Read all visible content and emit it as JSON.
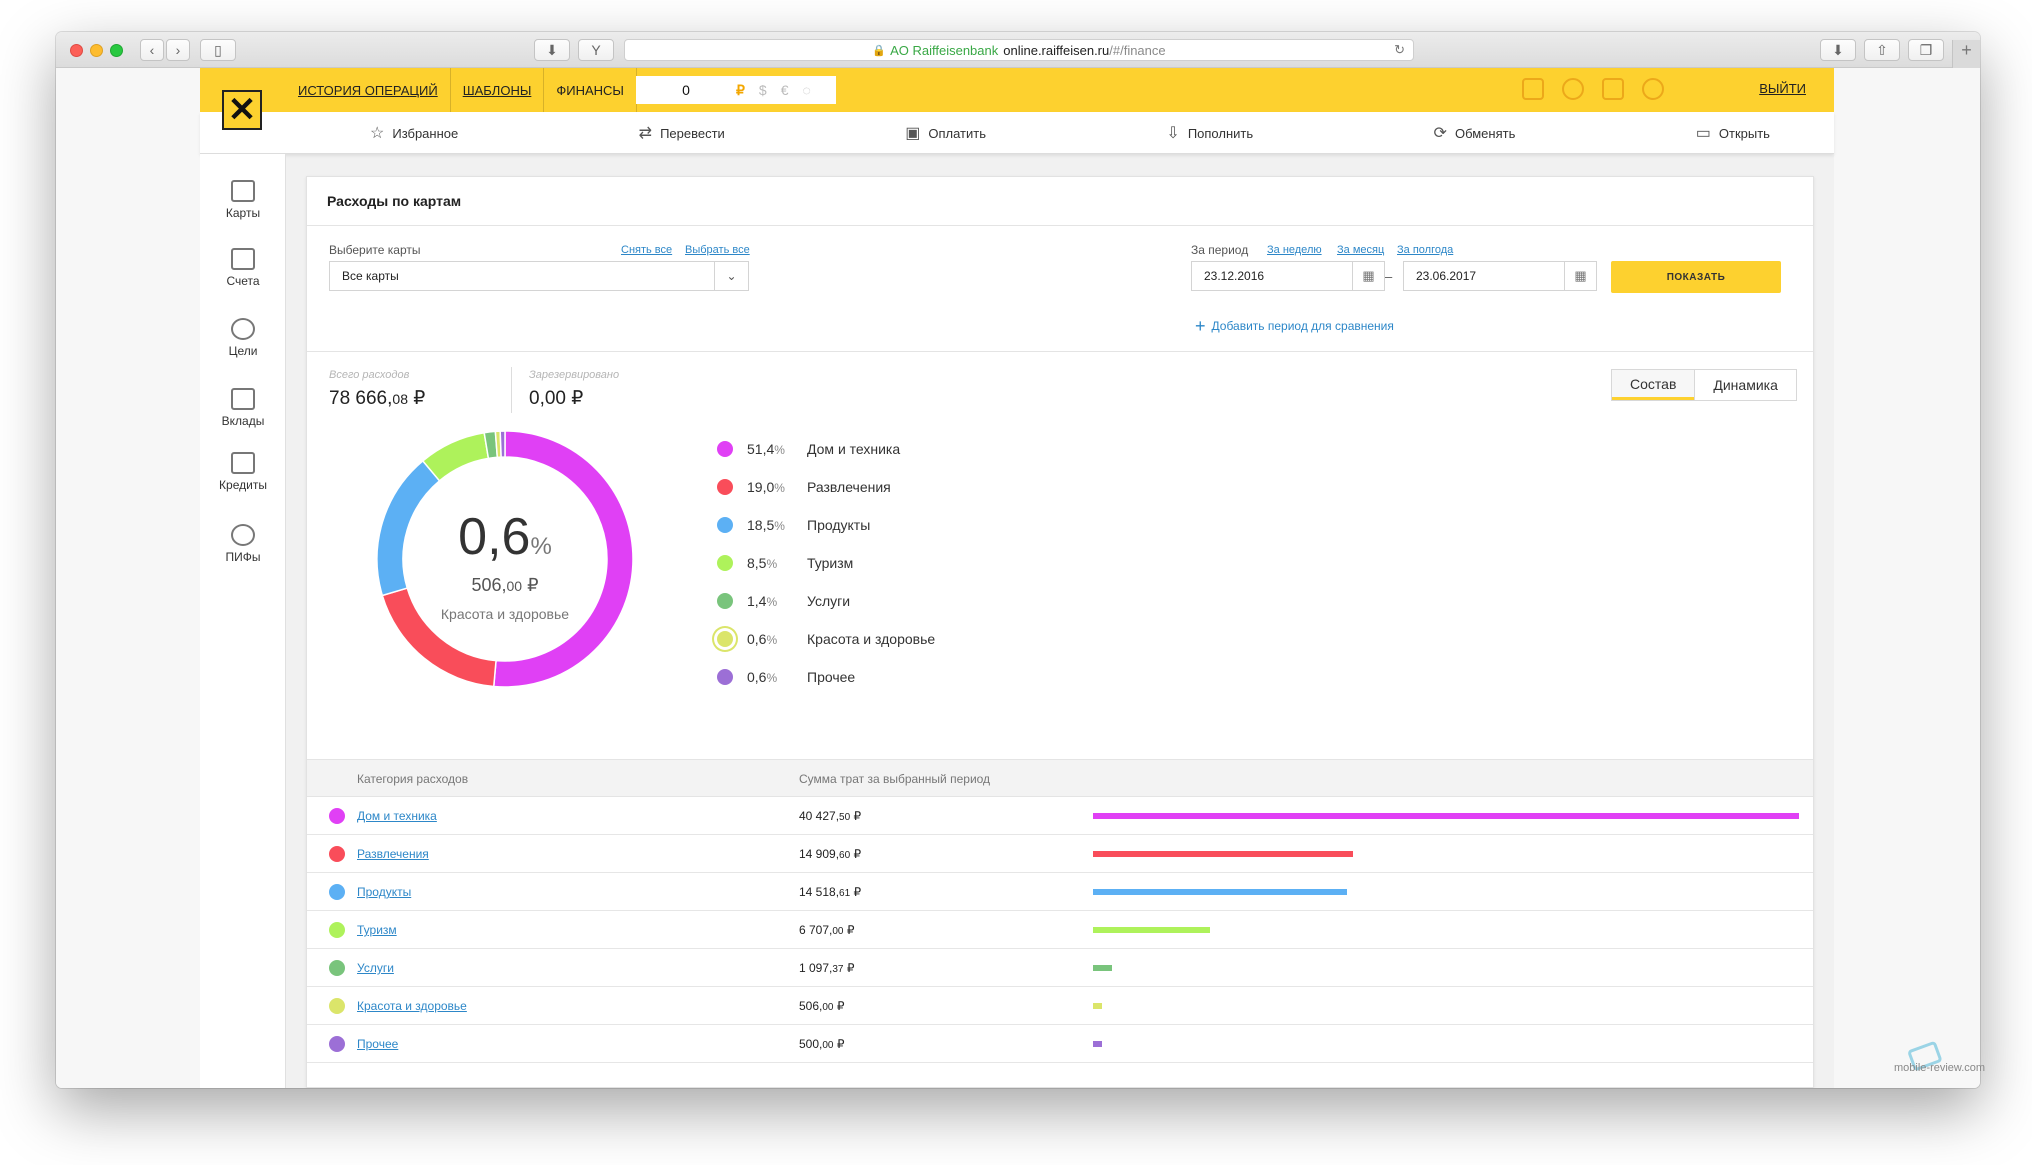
{
  "browser": {
    "url_org": "AO Raiffeisenbank",
    "url_host": "online.raiffeisen.ru",
    "url_path": "/#/finance"
  },
  "header": {
    "nav": [
      {
        "label": "ИСТОРИЯ ОПЕРАЦИЙ"
      },
      {
        "label": "ШАБЛОНЫ"
      },
      {
        "label": "ФИНАНСЫ"
      }
    ],
    "balance_value": "0",
    "currencies": [
      "₽",
      "$",
      "€"
    ],
    "logout_label": "ВЫЙТИ"
  },
  "actions": [
    {
      "label": "Избранное",
      "icon": "star-icon",
      "glyph": "☆"
    },
    {
      "label": "Перевести",
      "icon": "transfer-icon",
      "glyph": "⇄"
    },
    {
      "label": "Оплатить",
      "icon": "pay-icon",
      "glyph": "▣"
    },
    {
      "label": "Пополнить",
      "icon": "topup-icon",
      "glyph": "⇩"
    },
    {
      "label": "Обменять",
      "icon": "exchange-icon",
      "glyph": "⟳"
    },
    {
      "label": "Открыть",
      "icon": "open-icon",
      "glyph": "▭"
    }
  ],
  "sidebar": {
    "items": [
      {
        "label": "Карты",
        "icon": "cards-icon"
      },
      {
        "label": "Счета",
        "icon": "accounts-icon"
      },
      {
        "label": "Цели",
        "icon": "goals-icon"
      },
      {
        "label": "Вклады",
        "icon": "deposits-icon"
      },
      {
        "label": "Кредиты",
        "icon": "credits-icon"
      },
      {
        "label": "ПИФы",
        "icon": "funds-icon"
      }
    ]
  },
  "panel": {
    "title": "Расходы по картам",
    "cards_label": "Выберите карты",
    "deselect_all": "Снять все",
    "select_all": "Выбрать все",
    "cards_value": "Все карты",
    "period_label": "За период",
    "period_week": "За неделю",
    "period_month": "За месяц",
    "period_halfyear": "За полгода",
    "date_from": "23.12.2016",
    "date_to": "23.06.2017",
    "dash": "–",
    "show_button": "ПОКАЗАТЬ",
    "add_period": "Добавить период для сравнения",
    "total_label": "Всего расходов",
    "total_main": "78 666,",
    "total_cents": "08",
    "total_currency": " ₽",
    "reserved_label": "Зарезервировано",
    "reserved_value": "0,00 ₽",
    "tabs": [
      {
        "label": "Состав"
      },
      {
        "label": "Динамика"
      }
    ]
  },
  "donut": {
    "selected_pct": "0,6",
    "pct_sign": "%",
    "selected_amount": "506,",
    "selected_cents": "00",
    "selected_currency": " ₽",
    "selected_category": "Красота и здоровье"
  },
  "chart_data": {
    "type": "pie",
    "style": "donut",
    "slices": [
      {
        "name": "Дом и техника",
        "value": 51.4,
        "color": "#e040f5"
      },
      {
        "name": "Развлечения",
        "value": 19.0,
        "color": "#f94d5a"
      },
      {
        "name": "Продукты",
        "value": 18.5,
        "color": "#5cb0f4"
      },
      {
        "name": "Туризм",
        "value": 8.5,
        "color": "#aef25b"
      },
      {
        "name": "Услуги",
        "value": 1.4,
        "color": "#79c47c"
      },
      {
        "name": "Красота и здоровье",
        "value": 0.6,
        "color": "#dbe56a"
      },
      {
        "name": "Прочее",
        "value": 0.6,
        "color": "#9c6fd6"
      }
    ],
    "selected": "Красота и здоровье"
  },
  "legend": [
    {
      "pct": "51,4",
      "name": "Дом и техника",
      "color": "#e040f5"
    },
    {
      "pct": "19,0",
      "name": "Развлечения",
      "color": "#f94d5a"
    },
    {
      "pct": "18,5",
      "name": "Продукты",
      "color": "#5cb0f4"
    },
    {
      "pct": "8,5",
      "name": "Туризм",
      "color": "#aef25b"
    },
    {
      "pct": "1,4",
      "name": "Услуги",
      "color": "#79c47c"
    },
    {
      "pct": "0,6",
      "name": "Красота и здоровье",
      "color": "#dbe56a",
      "selected": true
    },
    {
      "pct": "0,6",
      "name": "Прочее",
      "color": "#9c6fd6"
    }
  ],
  "table": {
    "col_category": "Категория расходов",
    "col_sum": "Сумма трат за выбранный период",
    "rows": [
      {
        "category": "Дом и техника",
        "amount_main": "40 427,",
        "amount_cents": "50",
        "currency": " ₽",
        "value": 40427.5,
        "color": "#e040f5"
      },
      {
        "category": "Развлечения",
        "amount_main": "14 909,",
        "amount_cents": "60",
        "currency": " ₽",
        "value": 14909.6,
        "color": "#f94d5a"
      },
      {
        "category": "Продукты",
        "amount_main": "14 518,",
        "amount_cents": "61",
        "currency": " ₽",
        "value": 14518.61,
        "color": "#5cb0f4"
      },
      {
        "category": "Туризм",
        "amount_main": "6 707,",
        "amount_cents": "00",
        "currency": " ₽",
        "value": 6707.0,
        "color": "#aef25b"
      },
      {
        "category": "Услуги",
        "amount_main": "1 097,",
        "amount_cents": "37",
        "currency": " ₽",
        "value": 1097.37,
        "color": "#79c47c"
      },
      {
        "category": "Красота и здоровье",
        "amount_main": "506,",
        "amount_cents": "00",
        "currency": " ₽",
        "value": 506.0,
        "color": "#dbe56a"
      },
      {
        "category": "Прочее",
        "amount_main": "500,",
        "amount_cents": "00",
        "currency": " ₽",
        "value": 500.0,
        "color": "#9c6fd6"
      }
    ]
  },
  "watermark": "mobile-review.com"
}
